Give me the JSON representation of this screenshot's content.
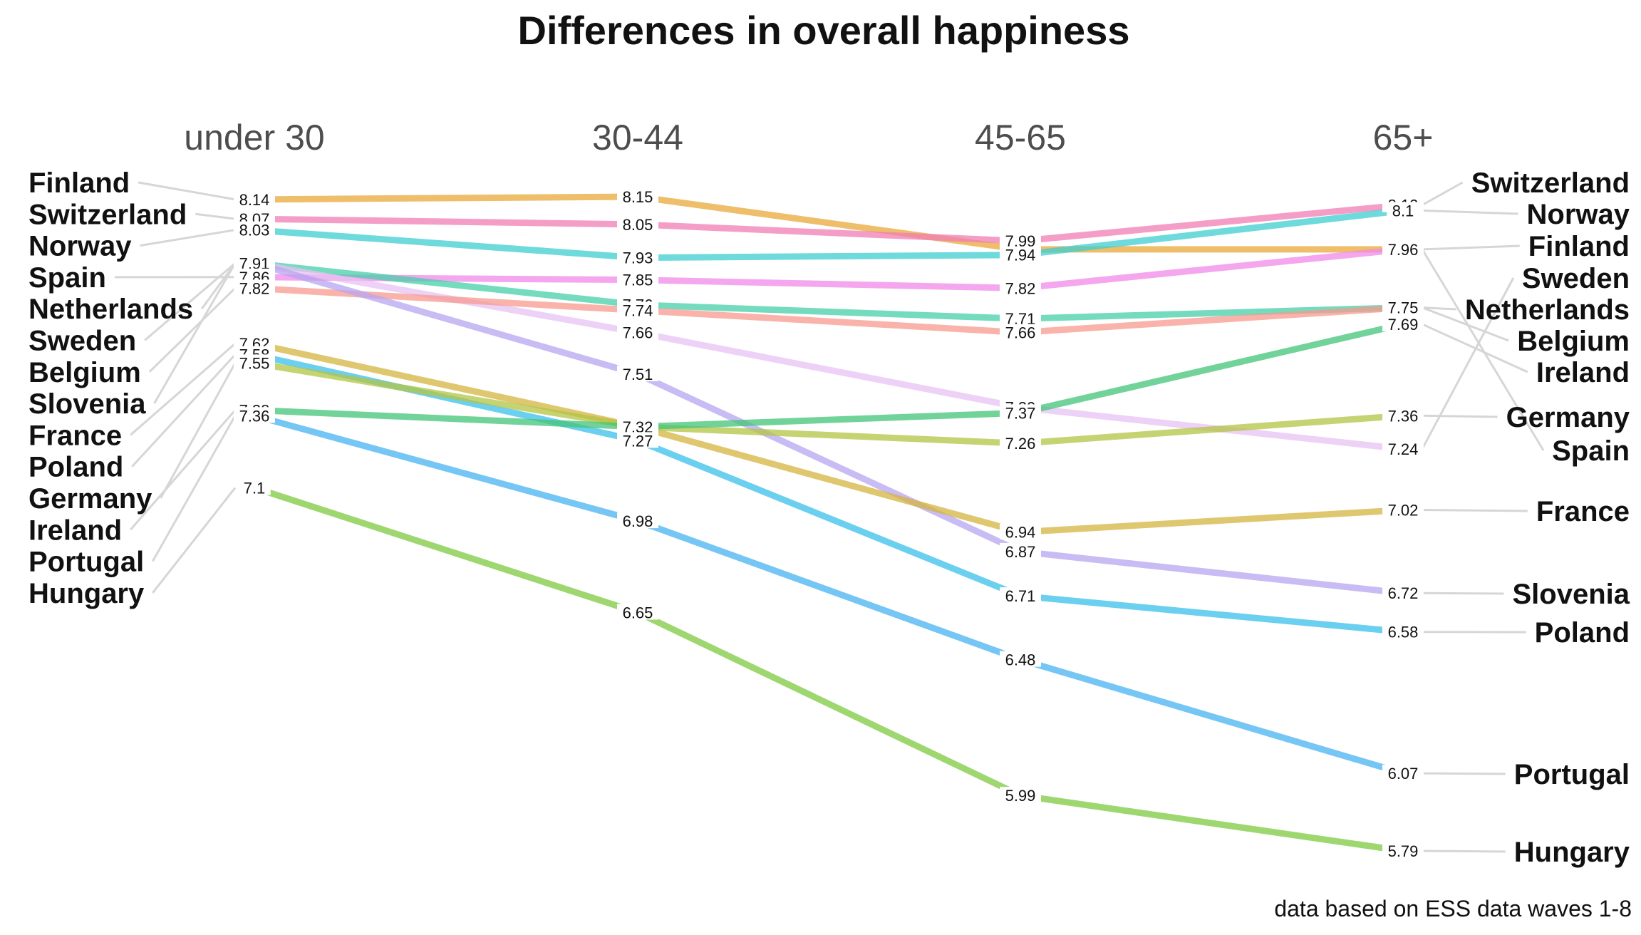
{
  "chart_data": {
    "type": "line",
    "title": "Differences in overall happiness",
    "caption": "data based on ESS data waves 1-8",
    "categories": [
      "under 30",
      "30-44",
      "45-65",
      "65+"
    ],
    "series": [
      {
        "name": "Finland",
        "color": "#e8a838",
        "values": [
          8.14,
          8.15,
          7.96,
          7.96
        ]
      },
      {
        "name": "Switzerland",
        "color": "#f07eb4",
        "values": [
          8.07,
          8.05,
          7.99,
          8.12
        ]
      },
      {
        "name": "Norway",
        "color": "#3dcdd0",
        "values": [
          8.03,
          7.93,
          7.94,
          8.1
        ]
      },
      {
        "name": "Spain",
        "color": "#f08ae8",
        "values": [
          7.86,
          7.85,
          7.82,
          7.96
        ]
      },
      {
        "name": "Netherlands",
        "color": "#45cfa8",
        "values": [
          7.91,
          7.76,
          7.71,
          7.75
        ]
      },
      {
        "name": "Sweden",
        "color": "#e7c1f3",
        "values": [
          7.91,
          7.66,
          7.39,
          7.24
        ]
      },
      {
        "name": "Belgium",
        "color": "#f79a8f",
        "values": [
          7.82,
          7.74,
          7.66,
          7.75
        ]
      },
      {
        "name": "Slovenia",
        "color": "#b7a4f0",
        "values": [
          7.91,
          7.51,
          6.87,
          6.72
        ]
      },
      {
        "name": "France",
        "color": "#d4b440",
        "values": [
          7.62,
          7.32,
          6.94,
          7.02
        ]
      },
      {
        "name": "Poland",
        "color": "#39bfe9",
        "values": [
          7.58,
          7.27,
          6.71,
          6.58
        ]
      },
      {
        "name": "Germany",
        "color": "#b3c444",
        "values": [
          7.55,
          7.32,
          7.26,
          7.36
        ]
      },
      {
        "name": "Ireland",
        "color": "#41c477",
        "values": [
          7.38,
          7.32,
          7.37,
          7.69
        ]
      },
      {
        "name": "Portugal",
        "color": "#47b3f0",
        "values": [
          7.36,
          6.98,
          6.48,
          6.07
        ]
      },
      {
        "name": "Hungary",
        "color": "#7ec840",
        "values": [
          7.1,
          6.65,
          5.99,
          5.79
        ]
      }
    ],
    "left_labels": [
      "Finland",
      "Switzerland",
      "Norway",
      "Spain",
      "Netherlands",
      "Sweden",
      "Belgium",
      "Slovenia",
      "France",
      "Poland",
      "Germany",
      "Ireland",
      "Portugal",
      "Hungary"
    ],
    "right_labels": [
      "Switzerland",
      "Norway",
      "Finland",
      "Sweden",
      "Netherlands",
      "Belgium",
      "Ireland",
      "Germany",
      "Spain",
      "France",
      "Slovenia",
      "Poland",
      "Portugal",
      "Hungary"
    ],
    "value_labels": {
      "under 30": [
        "8.14",
        "8.07",
        "8.03",
        "7.91",
        "7.86",
        "7.82",
        "7.62",
        "7.58",
        "7.55",
        "7.38",
        "7.36",
        "7.1"
      ],
      "30-44": [
        "8.15",
        "8.05",
        "7.93",
        "7.85",
        "7.76",
        "7.74",
        "7.66",
        "7.51",
        "7.32",
        "7.27",
        "6.98",
        "6.65"
      ],
      "45-65": [
        "7.99",
        "7.94",
        "7.82",
        "7.71",
        "7.66",
        "7.39",
        "7.37",
        "7.26",
        "6.94",
        "6.87",
        "6.71",
        "6.48",
        "5.99"
      ],
      "65+": [
        "8.12",
        "8.1",
        "7.96",
        "7.75",
        "7.69",
        "7.36",
        "7.24",
        "7.02",
        "6.72",
        "6.58",
        "6.07",
        "5.79"
      ]
    },
    "ylim": [
      5.79,
      8.15
    ],
    "grid": false,
    "legend": "none"
  }
}
